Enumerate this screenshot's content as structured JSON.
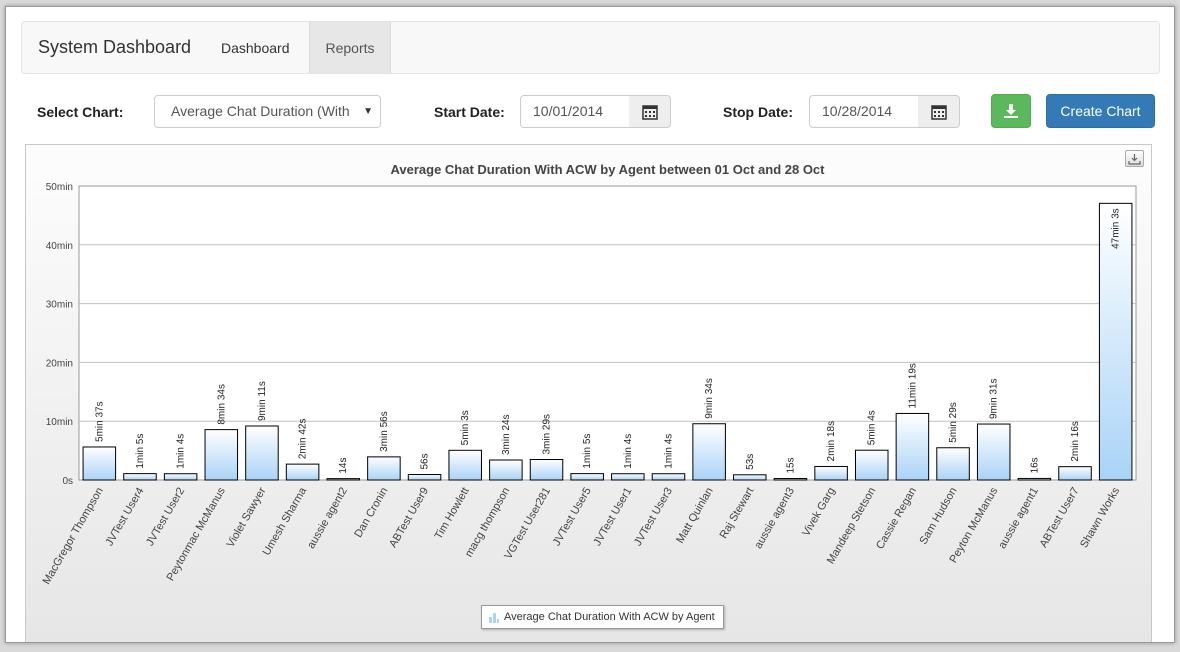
{
  "navbar": {
    "brand": "System Dashboard",
    "links": [
      {
        "label": "Dashboard",
        "active": false
      },
      {
        "label": "Reports",
        "active": true
      }
    ]
  },
  "controls": {
    "select_chart_label": "Select Chart:",
    "select_chart_value": "Average Chat Duration (With ACW)",
    "start_date_label": "Start Date:",
    "start_date_value": "10/01/2014",
    "stop_date_label": "Stop Date:",
    "stop_date_value": "10/28/2014",
    "download_icon": "download-icon",
    "create_chart_label": "Create Chart",
    "calendar_icon": "calendar-icon"
  },
  "colors": {
    "bar_fill_top": "#a9d3f7",
    "bar_fill_bottom": "#ffffff",
    "bar_stroke": "#000000",
    "create_button": "#337ab7",
    "download_button": "#5cb85c"
  },
  "chart_data": {
    "type": "bar",
    "title": "Average Chat Duration With ACW by Agent between 01 Oct and 28 Oct",
    "xlabel": "",
    "ylabel": "",
    "ylim": [
      0,
      50
    ],
    "y_unit": "min",
    "y_ticks": [
      "0s",
      "10min",
      "20min",
      "30min",
      "40min",
      "50min"
    ],
    "grid": true,
    "legend_position": "bottom-center",
    "series": [
      {
        "name": "Average Chat Duration With ACW by Agent"
      }
    ],
    "categories": [
      "MacGregor Thompson",
      "JVTest User4",
      "JVTest User2",
      "Peytonmac McManus",
      "Violet Sawyer",
      "Umesh Sharma",
      "aussie agent2",
      "Dan Cronin",
      "ABTest User9",
      "Tim Howlett",
      "macg thompson",
      "VGTest User281",
      "JVTest User5",
      "JVTest User1",
      "JVTest User3",
      "Matt Quinlan",
      "Raj Stewart",
      "aussie agent3",
      "Vivek Garg",
      "Mandeep Stetson",
      "Cassie Regan",
      "Sam Hudson",
      "Peyton McManus",
      "aussie agent1",
      "ABTest User7",
      "Shawn Works"
    ],
    "values": [
      5.617,
      1.083,
      1.067,
      8.567,
      9.183,
      2.7,
      0.233,
      3.933,
      0.933,
      5.05,
      3.4,
      3.483,
      1.083,
      1.067,
      1.067,
      9.567,
      0.883,
      0.25,
      2.3,
      5.067,
      11.317,
      5.483,
      9.517,
      0.267,
      2.267,
      47.05
    ],
    "data_labels": [
      "5min 37s",
      "1min 5s",
      "1min 4s",
      "8min 34s",
      "9min 11s",
      "2min 42s",
      "14s",
      "3min 56s",
      "56s",
      "5min 3s",
      "3min 24s",
      "3min 29s",
      "1min 5s",
      "1min 4s",
      "1min 4s",
      "9min 34s",
      "53s",
      "15s",
      "2min 18s",
      "5min 4s",
      "11min 19s",
      "5min 29s",
      "9min 31s",
      "16s",
      "2min 16s",
      "47min 3s"
    ]
  }
}
